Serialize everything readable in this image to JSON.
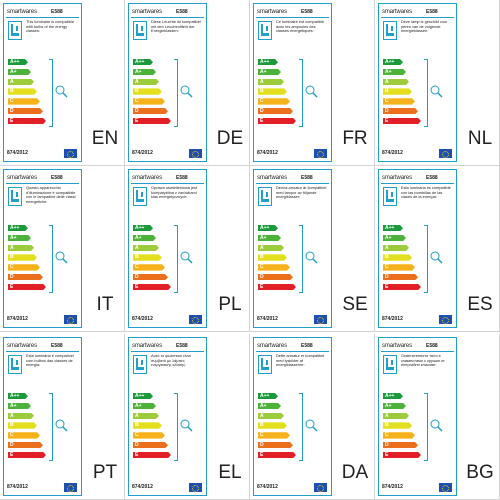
{
  "brand": "smartwares",
  "model": "E588",
  "regulation": "874/2012",
  "colors": {
    "frame": "#1f9fc9",
    "classes": {
      "A++": "#1a9a3a",
      "A+": "#4cb23a",
      "A": "#9ccc3c",
      "B": "#e3df1f",
      "C": "#f5b21b",
      "D": "#ec6f1e",
      "E": "#e21f26"
    }
  },
  "icons": [
    "lamp-icon",
    "bulb-icon",
    "eu-flag-icon"
  ],
  "energy_classes": [
    "A++",
    "A+",
    "A",
    "B",
    "C",
    "D",
    "E"
  ],
  "labels": [
    {
      "lang": "EN",
      "text": "This luminaire is compatible with bulbs of the energy classes:"
    },
    {
      "lang": "DE",
      "text": "Diese Leuchte ist kompatibel mit den Leuchtmitteln der Energieklassen:"
    },
    {
      "lang": "FR",
      "text": "Ce luminaire est compatible avec les ampoules des classes énergétiques:"
    },
    {
      "lang": "NL",
      "text": "Deze lamp is geschikt voor peren van de volgende energieklassen:"
    },
    {
      "lang": "IT",
      "text": "Questo apparecchio d'illuminazione è compatibile con le lampadine delle classi energetiche:"
    },
    {
      "lang": "PL",
      "text": "Oprawa oświetleniowa jest kompatybilna z żarówkami klas energetycznych:"
    },
    {
      "lang": "SE",
      "text": "Denna armatur är kompatibel med lampor av följande energiklasser:"
    },
    {
      "lang": "ES",
      "text": "Esta luminaria es compatible con las bombillas de las clases de la energía:"
    },
    {
      "lang": "PT",
      "text": "Esta luminária é compatível com bulbos das classes de energia:"
    },
    {
      "lang": "EL",
      "text": "Αυτό το φωτιστικό είναι συμβατό με λάμπες ενεργειακής κλάσης:"
    },
    {
      "lang": "DA",
      "text": "Dette armatur er kompatibel med lyskilder af energiklasserne:"
    },
    {
      "lang": "BG",
      "text": "Осветителното тяло е съвместимо с крушки от енергийни класове:"
    }
  ]
}
